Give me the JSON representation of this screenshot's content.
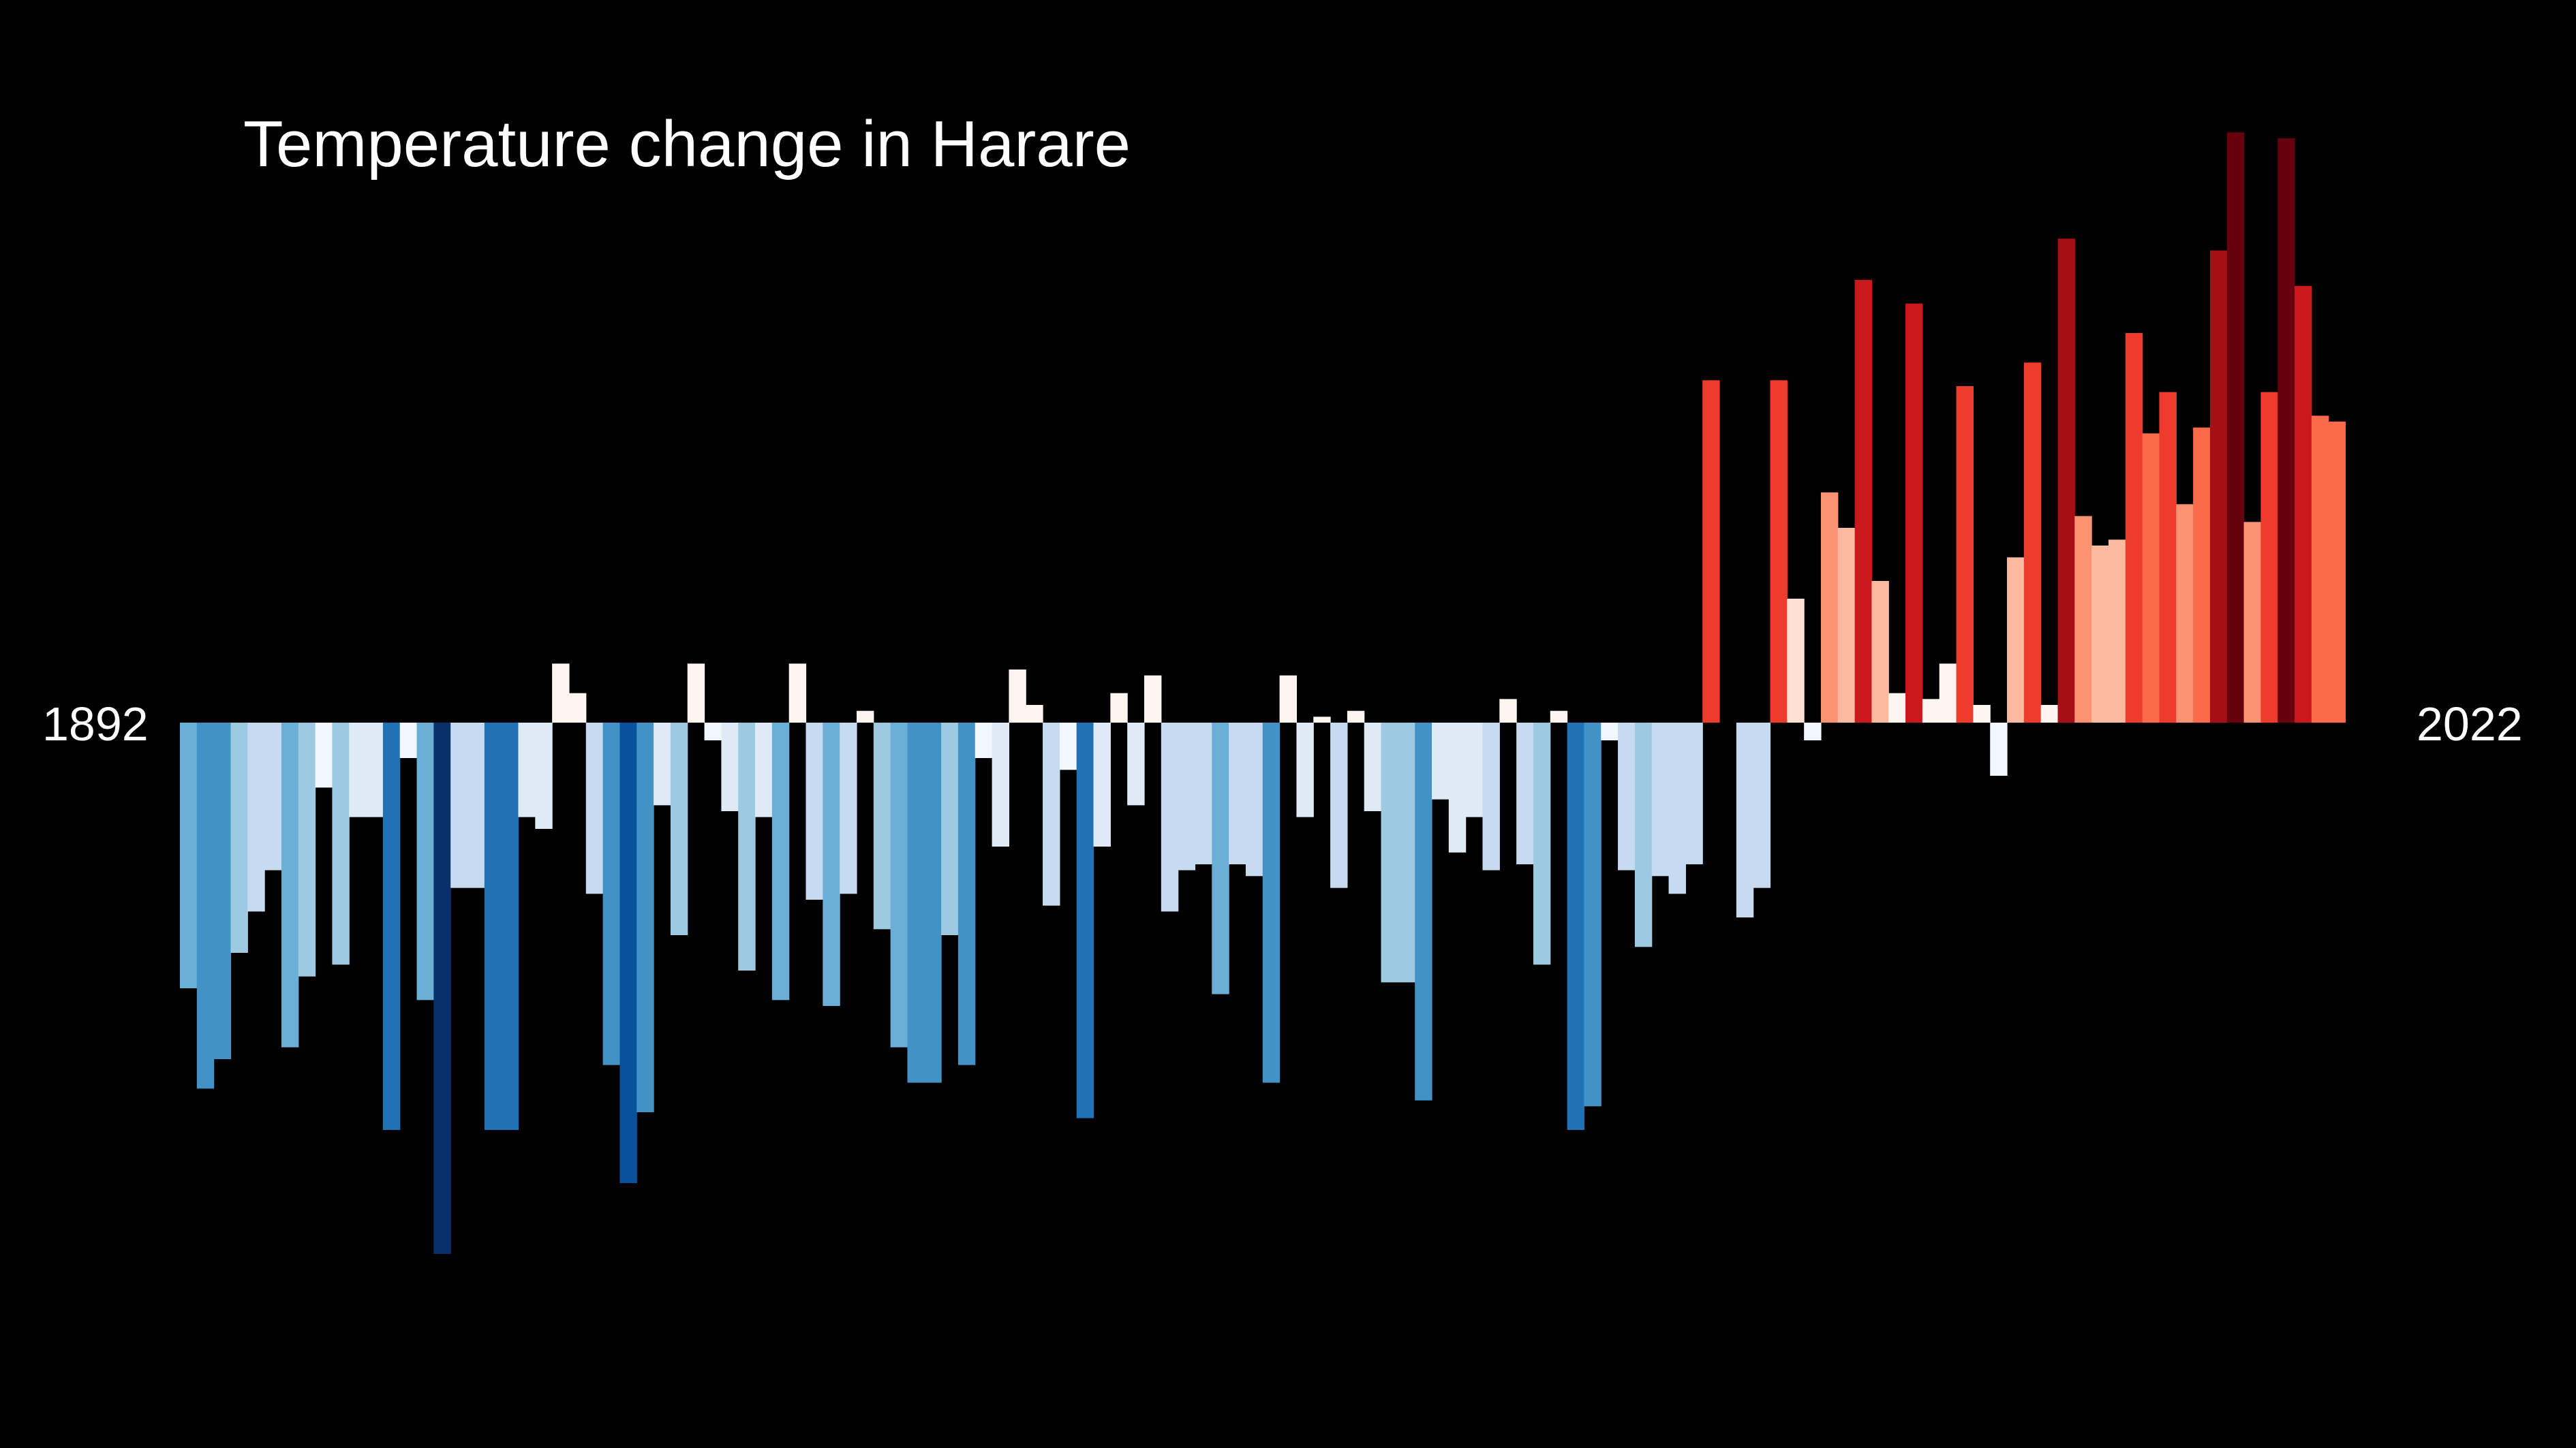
{
  "chart_data": {
    "type": "bar",
    "title": "Temperature change in Harare",
    "start_year_label": "1892",
    "end_year_label": "2022",
    "x": [
      1892,
      1893,
      1894,
      1895,
      1896,
      1897,
      1898,
      1899,
      1900,
      1901,
      1902,
      1903,
      1904,
      1905,
      1906,
      1907,
      1908,
      1909,
      1910,
      1911,
      1912,
      1913,
      1914,
      1915,
      1916,
      1917,
      1918,
      1919,
      1920,
      1921,
      1922,
      1923,
      1924,
      1925,
      1926,
      1927,
      1928,
      1929,
      1930,
      1931,
      1932,
      1933,
      1934,
      1935,
      1936,
      1937,
      1938,
      1939,
      1940,
      1941,
      1942,
      1943,
      1944,
      1945,
      1946,
      1947,
      1948,
      1949,
      1950,
      1951,
      1952,
      1953,
      1954,
      1955,
      1956,
      1957,
      1958,
      1959,
      1960,
      1961,
      1962,
      1963,
      1964,
      1965,
      1966,
      1967,
      1968,
      1969,
      1970,
      1971,
      1972,
      1973,
      1974,
      1975,
      1976,
      1977,
      1978,
      1979,
      1980,
      1981,
      1982,
      1983,
      1984,
      1985,
      1986,
      1987,
      1988,
      1989,
      1990,
      1991,
      1992,
      1993,
      1994,
      1995,
      1996,
      1997,
      1998,
      1999,
      2000,
      2001,
      2002,
      2003,
      2004,
      2005,
      2006,
      2007,
      2008,
      2009,
      2010,
      2011,
      2012,
      2013,
      2014,
      2015,
      2016,
      2017,
      2018,
      2019,
      2020,
      2021,
      2022
    ],
    "values": [
      -0.45,
      -0.62,
      -0.57,
      -0.39,
      -0.32,
      -0.25,
      -0.55,
      -0.43,
      -0.11,
      -0.41,
      -0.16,
      -0.16,
      -0.69,
      -0.06,
      -0.47,
      -0.9,
      -0.28,
      -0.28,
      -0.69,
      -0.69,
      -0.16,
      -0.18,
      0.1,
      0.05,
      -0.29,
      -0.58,
      -0.78,
      -0.66,
      -0.14,
      -0.36,
      0.1,
      -0.03,
      -0.15,
      -0.42,
      -0.16,
      -0.47,
      0.1,
      -0.3,
      -0.48,
      -0.29,
      0.02,
      -0.35,
      -0.55,
      -0.61,
      -0.61,
      -0.36,
      -0.58,
      -0.06,
      -0.21,
      0.09,
      0.03,
      -0.31,
      -0.08,
      -0.67,
      -0.21,
      0.05,
      -0.14,
      0.08,
      -0.32,
      -0.25,
      -0.24,
      -0.46,
      -0.24,
      -0.26,
      -0.61,
      0.08,
      -0.16,
      0.01,
      -0.28,
      0.02,
      -0.15,
      -0.44,
      -0.44,
      -0.64,
      -0.13,
      -0.22,
      -0.16,
      -0.25,
      0.04,
      -0.24,
      -0.41,
      0.02,
      -0.69,
      -0.65,
      -0.03,
      -0.25,
      -0.38,
      -0.26,
      -0.29,
      -0.24,
      0.58,
      0.0,
      -0.33,
      -0.28,
      0.58,
      0.21,
      -0.03,
      0.39,
      0.33,
      0.75,
      0.24,
      0.05,
      0.71,
      0.04,
      0.1,
      0.57,
      0.03,
      -0.09,
      0.28,
      0.61,
      0.03,
      0.82,
      0.35,
      0.3,
      0.31,
      0.66,
      0.49,
      0.56,
      0.37,
      0.5,
      0.8,
      1.0,
      0.34,
      0.56,
      0.99,
      0.74,
      0.52,
      0.51,
      0.0,
      0.0,
      0.0
    ],
    "ylim": [
      -1.2,
      1.2
    ],
    "colors": {
      "background": "#000000",
      "text": "#ffffff",
      "blue_palette": [
        "#f0f7ff",
        "#deebf7",
        "#c6dbef",
        "#9ecae1",
        "#6baed6",
        "#4292c6",
        "#2171b5",
        "#08519c",
        "#08306b"
      ],
      "red_palette": [
        "#fff5f0",
        "#fee0d2",
        "#fcbba1",
        "#fc9272",
        "#fb6a4a",
        "#ef3b2c",
        "#cb181d",
        "#a50f15",
        "#67000d"
      ]
    }
  }
}
